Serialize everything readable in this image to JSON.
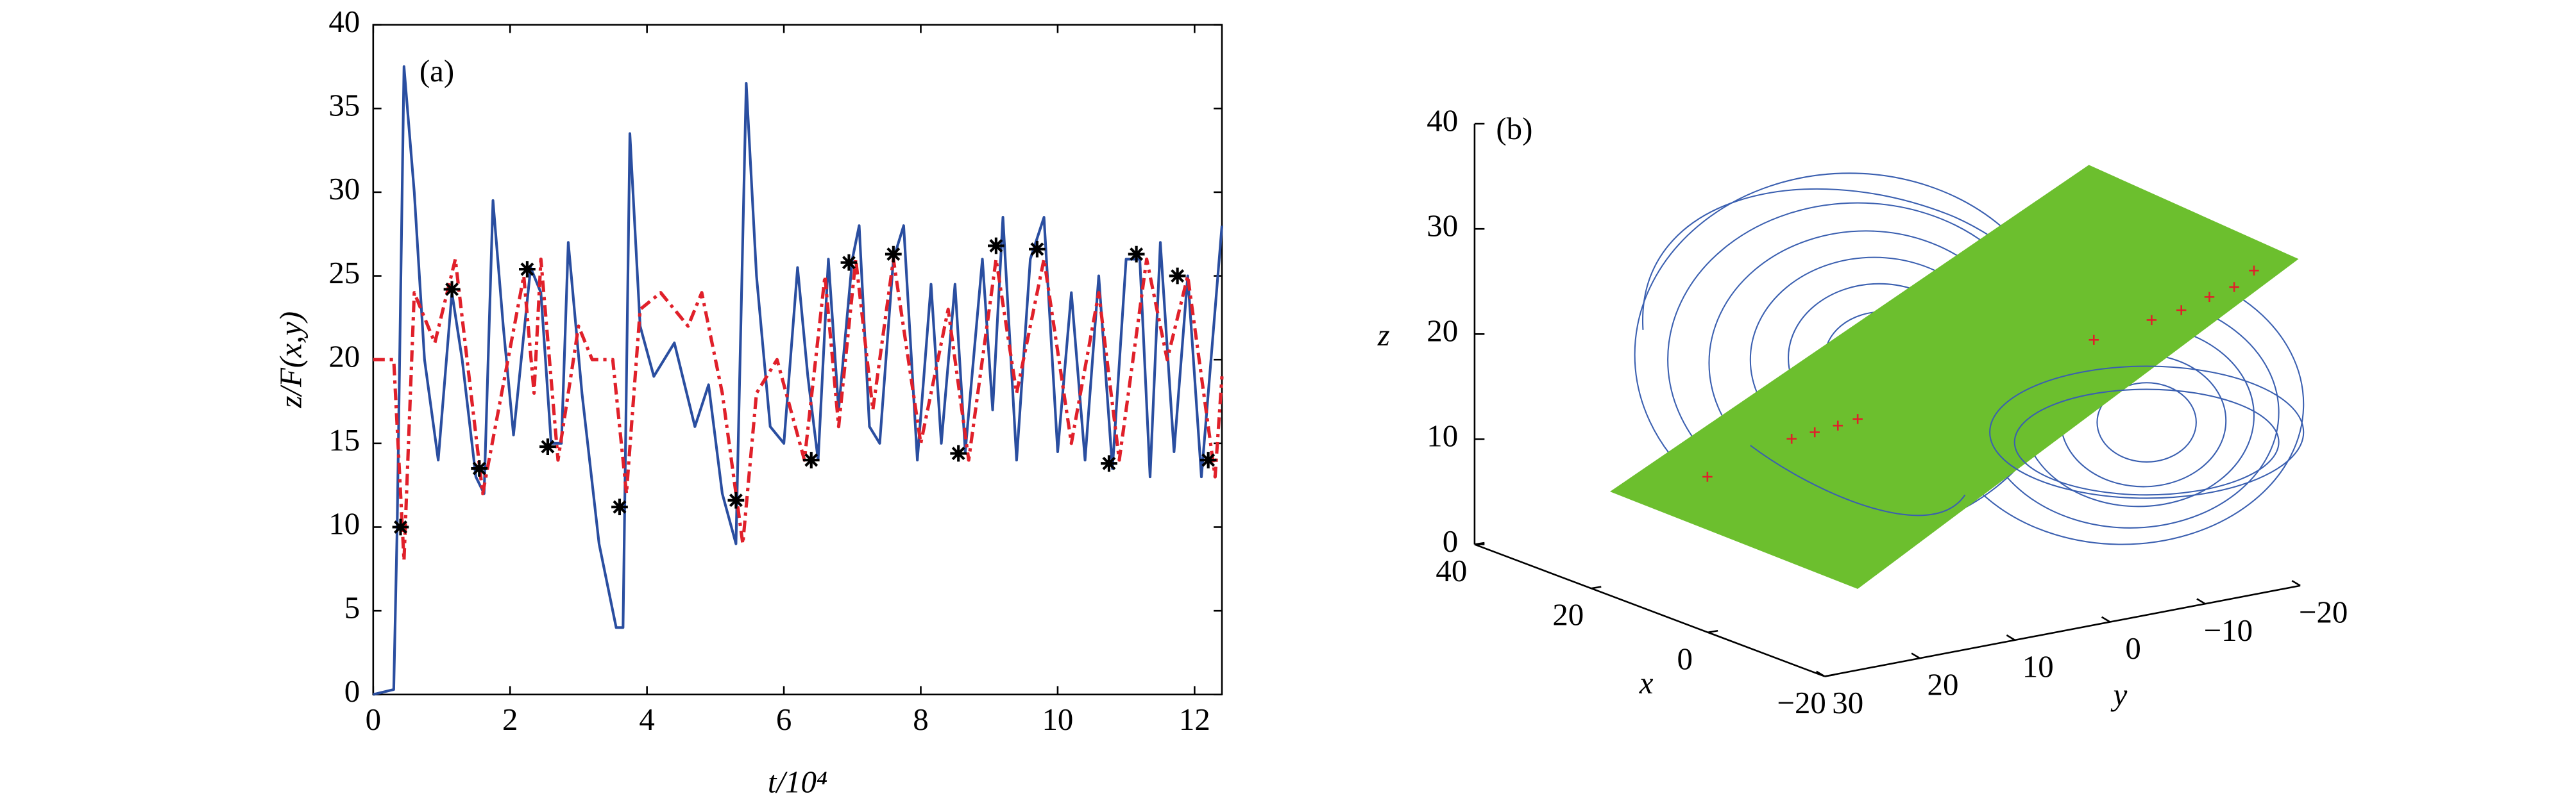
{
  "chart_data": [
    {
      "type": "line",
      "annotation": "(a)",
      "x_label": "t/10⁴",
      "y_label": "z/F(x,y)",
      "xlim": [
        0,
        12.4
      ],
      "xticks": [
        0,
        2,
        4,
        6,
        8,
        10,
        12
      ],
      "ylim": [
        0,
        40
      ],
      "yticks": [
        0,
        5,
        10,
        15,
        20,
        25,
        30,
        35,
        40
      ],
      "series": [
        {
          "color": "#2a4ea0",
          "style": "solid",
          "x": [
            0,
            0.3,
            0.35,
            0.45,
            0.6,
            0.75,
            0.95,
            1.15,
            1.3,
            1.5,
            1.62,
            1.75,
            1.9,
            2.05,
            2.3,
            2.45,
            2.6,
            2.75,
            2.85,
            3.05,
            3.3,
            3.55,
            3.65,
            3.75,
            3.9,
            4.1,
            4.4,
            4.7,
            4.9,
            5.1,
            5.3,
            5.45,
            5.6,
            5.8,
            6.0,
            6.2,
            6.35,
            6.5,
            6.65,
            6.8,
            7.0,
            7.1,
            7.25,
            7.4,
            7.6,
            7.75,
            7.95,
            8.15,
            8.3,
            8.5,
            8.65,
            8.9,
            9.05,
            9.2,
            9.4,
            9.6,
            9.8,
            10.0,
            10.2,
            10.4,
            10.6,
            10.8,
            11.0,
            11.2,
            11.35,
            11.5,
            11.7,
            11.9,
            12.1,
            12.4
          ],
          "values": [
            0,
            0.3,
            10,
            37.5,
            30,
            20,
            14,
            24,
            20,
            13,
            12,
            29.5,
            22,
            15.5,
            25.5,
            24,
            15,
            15,
            27,
            18,
            9,
            4,
            4,
            33.5,
            22,
            19,
            21,
            16,
            18.5,
            12,
            9,
            36.5,
            25,
            16,
            15,
            25.5,
            19,
            14,
            26,
            17,
            26,
            28,
            16,
            15,
            26,
            28,
            14,
            24.5,
            15,
            24.5,
            14.5,
            26,
            17,
            28.5,
            14,
            26,
            28.5,
            14.5,
            24,
            14,
            25,
            13.5,
            26,
            26,
            13,
            27,
            14.5,
            25,
            13,
            28
          ]
        },
        {
          "color": "#e0202a",
          "style": "dashdot",
          "x": [
            0,
            0.3,
            0.45,
            0.6,
            0.9,
            1.2,
            1.6,
            2.2,
            2.35,
            2.45,
            2.7,
            3.0,
            3.2,
            3.5,
            3.7,
            3.9,
            4.2,
            4.6,
            4.8,
            5.1,
            5.4,
            5.6,
            5.9,
            6.3,
            6.6,
            6.8,
            7.05,
            7.3,
            7.6,
            8.0,
            8.4,
            8.7,
            9.1,
            9.4,
            9.8,
            10.2,
            10.6,
            10.9,
            11.3,
            11.6,
            11.9,
            12.3,
            12.4
          ],
          "values": [
            20,
            20,
            8,
            24,
            21,
            26,
            12,
            25,
            18,
            26,
            14,
            22,
            20,
            20,
            12,
            23,
            24,
            22,
            24,
            18,
            9,
            18,
            20,
            14,
            25,
            16,
            26,
            17,
            26,
            15,
            23,
            14,
            26,
            18,
            26,
            15,
            24,
            14,
            26,
            20,
            25,
            13,
            19
          ]
        },
        {
          "color": "#000000",
          "style": "markers",
          "x": [
            0.4,
            1.15,
            1.55,
            2.25,
            2.55,
            3.6,
            5.3,
            6.4,
            6.95,
            7.6,
            8.55,
            9.1,
            9.7,
            10.75,
            11.15,
            11.75,
            12.2
          ],
          "values": [
            10,
            24.2,
            13.5,
            25.4,
            14.8,
            11.2,
            11.6,
            14,
            25.8,
            26.3,
            14.4,
            26.8,
            26.6,
            13.8,
            26.3,
            25,
            14
          ]
        }
      ]
    },
    {
      "type": "3d",
      "annotation": "(b)",
      "x_label": "x",
      "y_label": "y",
      "z_label": "z",
      "xlim": [
        -20,
        40
      ],
      "xticks": [
        {
          "value": -20,
          "label": "−20"
        },
        0,
        20,
        40
      ],
      "ylim": [
        -20,
        30
      ],
      "yticks": [
        {
          "value": -20,
          "label": "−20"
        },
        {
          "value": -10,
          "label": "−10"
        },
        0,
        10,
        20,
        30
      ],
      "zlim": [
        0,
        40
      ],
      "zticks": [
        0,
        10,
        20,
        30,
        40
      ],
      "surface_color": "#6cbf2e",
      "trajectory_color": "#3a5fb0",
      "marker_color": "#e0202a"
    }
  ]
}
